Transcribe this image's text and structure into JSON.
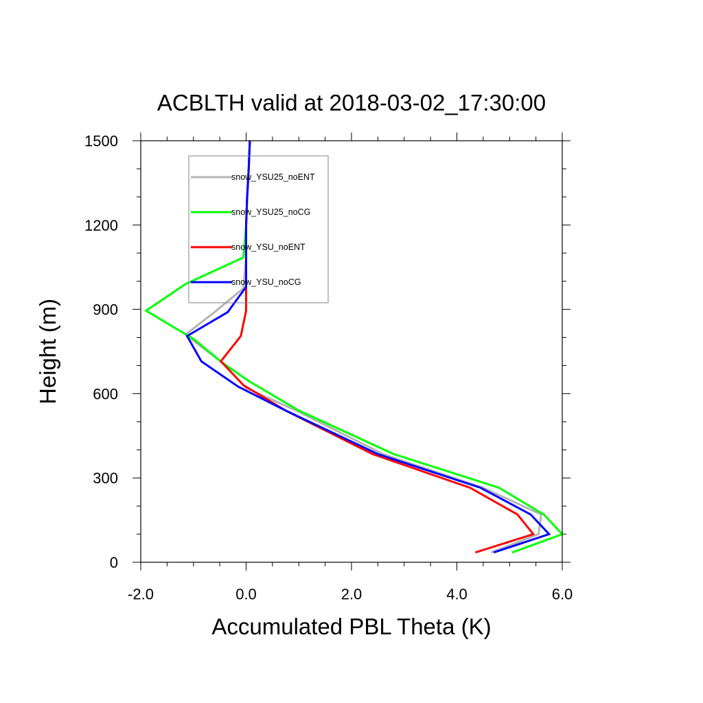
{
  "chart_data": {
    "type": "line",
    "title": "ACBLTH valid at 2018-03-02_17:30:00",
    "xlabel": "Accumulated PBL Theta (K)",
    "ylabel": "Height (m)",
    "xlim": [
      -2.0,
      6.0
    ],
    "ylim": [
      0,
      1500
    ],
    "xticks": [
      -2.0,
      0.0,
      2.0,
      4.0,
      6.0
    ],
    "xtick_labels": [
      "-2.0",
      "0.0",
      "2.0",
      "4.0",
      "6.0"
    ],
    "yticks": [
      0,
      300,
      600,
      900,
      1200,
      1500
    ],
    "ytick_labels": [
      "0",
      "300",
      "600",
      "900",
      "1200",
      "1500"
    ],
    "grid": false,
    "legend_position": "top-left",
    "series": [
      {
        "name": "snow_YSU25_noENT",
        "color": "#b4b4b4",
        "x": [
          4.65,
          5.55,
          5.6,
          4.5,
          2.6,
          0.95,
          0.0,
          -0.45,
          -1.15,
          -0.6,
          -0.05,
          0.0,
          0.0,
          0.02,
          0.05,
          0.07
        ],
        "y": [
          35,
          100,
          170,
          265,
          385,
          540,
          620,
          710,
          810,
          890,
          975,
          1085,
          1200,
          1300,
          1400,
          1500
        ]
      },
      {
        "name": "snow_YSU25_noCG",
        "color": "#00ff00",
        "x": [
          5.05,
          6.0,
          5.65,
          4.8,
          2.8,
          1.0,
          0.05,
          -0.45,
          -1.0,
          -1.9,
          -1.15,
          -0.05,
          0.0,
          0.02,
          0.05,
          0.07
        ],
        "y": [
          35,
          100,
          170,
          265,
          385,
          540,
          645,
          710,
          795,
          895,
          990,
          1085,
          1200,
          1300,
          1400,
          1500
        ]
      },
      {
        "name": "snow_YSU_noENT",
        "color": "#ff0000",
        "x": [
          4.35,
          5.45,
          5.15,
          4.25,
          2.4,
          0.75,
          -0.05,
          -0.48,
          -0.1,
          0.0,
          0.0,
          0.0,
          0.0,
          0.02,
          0.05,
          0.07
        ],
        "y": [
          35,
          100,
          170,
          265,
          385,
          540,
          630,
          715,
          805,
          895,
          980,
          1085,
          1200,
          1300,
          1400,
          1500
        ]
      },
      {
        "name": "snow_YSU_noCG",
        "color": "#0000ff",
        "x": [
          4.7,
          5.75,
          5.4,
          4.45,
          2.5,
          0.75,
          -0.15,
          -0.85,
          -1.12,
          -0.35,
          0.0,
          0.0,
          0.0,
          0.02,
          0.05,
          0.07
        ],
        "y": [
          35,
          100,
          170,
          265,
          385,
          540,
          625,
          715,
          805,
          890,
          980,
          1085,
          1200,
          1300,
          1400,
          1500
        ]
      }
    ]
  }
}
